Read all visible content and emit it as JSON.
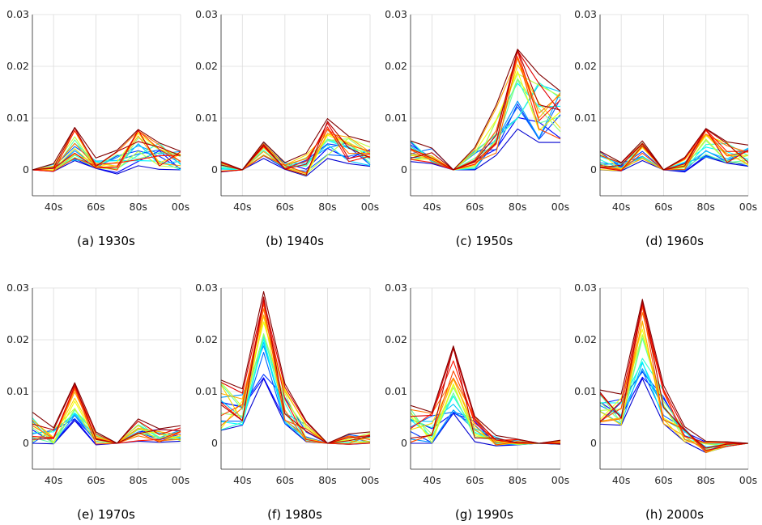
{
  "panels": [
    {
      "caption": "(a) 1930s"
    },
    {
      "caption": "(b) 1940s"
    },
    {
      "caption": "(c) 1950s"
    },
    {
      "caption": "(d) 1960s"
    },
    {
      "caption": "(e) 1970s"
    },
    {
      "caption": "(f) 1980s"
    },
    {
      "caption": "(g) 1990s"
    },
    {
      "caption": "(h) 2000s"
    }
  ],
  "chart_data": [
    {
      "type": "line",
      "title": "(a) 1930s",
      "x": [
        "30s",
        "40s",
        "50s",
        "60s",
        "70s",
        "80s",
        "90s",
        "00s"
      ],
      "x_tick_labels": [
        "40s",
        "60s",
        "80s",
        "00s"
      ],
      "y_ticks": [
        0,
        0.01,
        0.02,
        0.03
      ],
      "ylim": [
        -0.005,
        0.03
      ],
      "grid": true,
      "series_count": 20,
      "colormap": "jet",
      "series_envelope": {
        "min": [
          0,
          -0.0003,
          0.0018,
          0.0003,
          -0.0008,
          0.0008,
          0.0001,
          0.0
        ],
        "max": [
          0,
          0.0012,
          0.0082,
          0.0023,
          0.0038,
          0.0078,
          0.0052,
          0.0036
        ]
      },
      "series_typical": [
        0,
        0.0002,
        0.0048,
        0.0011,
        0.0014,
        0.0052,
        0.0032,
        0.002
      ]
    },
    {
      "type": "line",
      "title": "(b) 1940s",
      "x": [
        "30s",
        "40s",
        "50s",
        "60s",
        "70s",
        "80s",
        "90s",
        "00s"
      ],
      "x_tick_labels": [
        "40s",
        "60s",
        "80s",
        "00s"
      ],
      "y_ticks": [
        0,
        0.01,
        0.02,
        0.03
      ],
      "ylim": [
        -0.005,
        0.03
      ],
      "grid": true,
      "series_count": 20,
      "colormap": "jet",
      "series_envelope": {
        "min": [
          -0.0004,
          0,
          0.0022,
          0.0001,
          -0.0012,
          0.0022,
          0.0012,
          0.0007
        ],
        "max": [
          0.0016,
          0,
          0.0054,
          0.0014,
          0.0032,
          0.0099,
          0.0065,
          0.0054
        ]
      },
      "series_typical": [
        0.0005,
        0,
        0.0042,
        0.0006,
        0.001,
        0.006,
        0.004,
        0.003
      ]
    },
    {
      "type": "line",
      "title": "(c) 1950s",
      "x": [
        "30s",
        "40s",
        "50s",
        "60s",
        "70s",
        "80s",
        "90s",
        "00s"
      ],
      "x_tick_labels": [
        "40s",
        "60s",
        "80s",
        "00s"
      ],
      "y_ticks": [
        0,
        0.01,
        0.02,
        0.03
      ],
      "ylim": [
        -0.005,
        0.03
      ],
      "grid": true,
      "series_count": 20,
      "colormap": "jet",
      "series_envelope": {
        "min": [
          0.0016,
          0.0012,
          0,
          0,
          0.0028,
          0.0079,
          0.0053,
          0.0053
        ],
        "max": [
          0.0056,
          0.0042,
          0,
          0.0043,
          0.0125,
          0.0233,
          0.0185,
          0.0152
        ]
      },
      "series_typical": [
        0.0035,
        0.0025,
        0,
        0.0018,
        0.0072,
        0.0145,
        0.0115,
        0.0102
      ]
    },
    {
      "type": "line",
      "title": "(d) 1960s",
      "x": [
        "30s",
        "40s",
        "50s",
        "60s",
        "70s",
        "80s",
        "90s",
        "00s"
      ],
      "x_tick_labels": [
        "40s",
        "60s",
        "80s",
        "00s"
      ],
      "y_ticks": [
        0,
        0.01,
        0.02,
        0.03
      ],
      "ylim": [
        -0.005,
        0.03
      ],
      "grid": true,
      "series_count": 20,
      "colormap": "jet",
      "series_envelope": {
        "min": [
          0,
          -0.0002,
          0.0018,
          0,
          -0.0004,
          0.0025,
          0.0013,
          0.0007
        ],
        "max": [
          0.0036,
          0.0014,
          0.0056,
          0,
          0.0024,
          0.008,
          0.0054,
          0.0048
        ]
      },
      "series_typical": [
        0.0016,
        0.0004,
        0.0034,
        0,
        0.0008,
        0.0052,
        0.0033,
        0.0028
      ]
    },
    {
      "type": "line",
      "title": "(e) 1970s",
      "x": [
        "30s",
        "40s",
        "50s",
        "60s",
        "70s",
        "80s",
        "90s",
        "00s"
      ],
      "x_tick_labels": [
        "40s",
        "60s",
        "80s",
        "00s"
      ],
      "y_ticks": [
        0,
        0.01,
        0.02,
        0.03
      ],
      "ylim": [
        -0.005,
        0.03
      ],
      "grid": true,
      "series_count": 20,
      "colormap": "jet",
      "series_envelope": {
        "min": [
          0,
          -0.0001,
          0.0044,
          -0.0003,
          0,
          0.0004,
          0.0002,
          0.0004
        ],
        "max": [
          0.006,
          0.003,
          0.0117,
          0.0022,
          0,
          0.0047,
          0.0028,
          0.0034
        ]
      },
      "series_typical": [
        0.0022,
        0.0011,
        0.0083,
        0.0008,
        0,
        0.0024,
        0.0014,
        0.0017
      ]
    },
    {
      "type": "line",
      "title": "(f) 1980s",
      "x": [
        "30s",
        "40s",
        "50s",
        "60s",
        "70s",
        "80s",
        "90s",
        "00s"
      ],
      "x_tick_labels": [
        "40s",
        "60s",
        "80s",
        "00s"
      ],
      "y_ticks": [
        0,
        0.01,
        0.02,
        0.03
      ],
      "ylim": [
        -0.005,
        0.03
      ],
      "grid": true,
      "series_count": 20,
      "colormap": "jet",
      "series_envelope": {
        "min": [
          0.0025,
          0.0035,
          0.0125,
          0.0038,
          0.0003,
          0,
          -0.0002,
          0.0
        ],
        "max": [
          0.0122,
          0.0105,
          0.0293,
          0.0115,
          0.0043,
          0,
          0.0018,
          0.0022
        ]
      },
      "series_typical": [
        0.0075,
        0.0065,
        0.0215,
        0.0075,
        0.0018,
        0,
        0.0006,
        0.0008
      ]
    },
    {
      "type": "line",
      "title": "(g) 1990s",
      "x": [
        "30s",
        "40s",
        "50s",
        "60s",
        "70s",
        "80s",
        "90s",
        "00s"
      ],
      "x_tick_labels": [
        "40s",
        "60s",
        "80s",
        "00s"
      ],
      "y_ticks": [
        0,
        0.01,
        0.02,
        0.03
      ],
      "ylim": [
        -0.005,
        0.03
      ],
      "grid": true,
      "series_count": 20,
      "colormap": "jet",
      "series_envelope": {
        "min": [
          0,
          0,
          0.0058,
          0.0003,
          -0.0005,
          -0.0003,
          0,
          -0.0002
        ],
        "max": [
          0.0073,
          0.006,
          0.0188,
          0.0052,
          0.0015,
          0.0008,
          0,
          0.0006
        ]
      },
      "series_typical": [
        0.0035,
        0.003,
        0.0128,
        0.0027,
        0.0004,
        0.0002,
        0,
        0.0001
      ]
    },
    {
      "type": "line",
      "title": "(h) 2000s",
      "x": [
        "30s",
        "40s",
        "50s",
        "60s",
        "70s",
        "80s",
        "90s",
        "00s"
      ],
      "x_tick_labels": [
        "40s",
        "60s",
        "80s",
        "00s"
      ],
      "y_ticks": [
        0,
        0.01,
        0.02,
        0.03
      ],
      "ylim": [
        -0.005,
        0.03
      ],
      "grid": true,
      "series_count": 20,
      "colormap": "jet",
      "series_envelope": {
        "min": [
          0.0037,
          0.0035,
          0.0125,
          0.0038,
          0.0003,
          -0.0018,
          -0.0006,
          0
        ],
        "max": [
          0.0103,
          0.0095,
          0.0278,
          0.0112,
          0.0032,
          0.0004,
          0.0003,
          0
        ]
      },
      "series_typical": [
        0.0068,
        0.0062,
        0.0198,
        0.0075,
        0.0015,
        -0.0006,
        -0.0001,
        0
      ]
    }
  ],
  "colors": {
    "axis": "#262626",
    "grid": "#dcdcdc"
  },
  "style": {
    "panel_background": "#ffffff"
  }
}
